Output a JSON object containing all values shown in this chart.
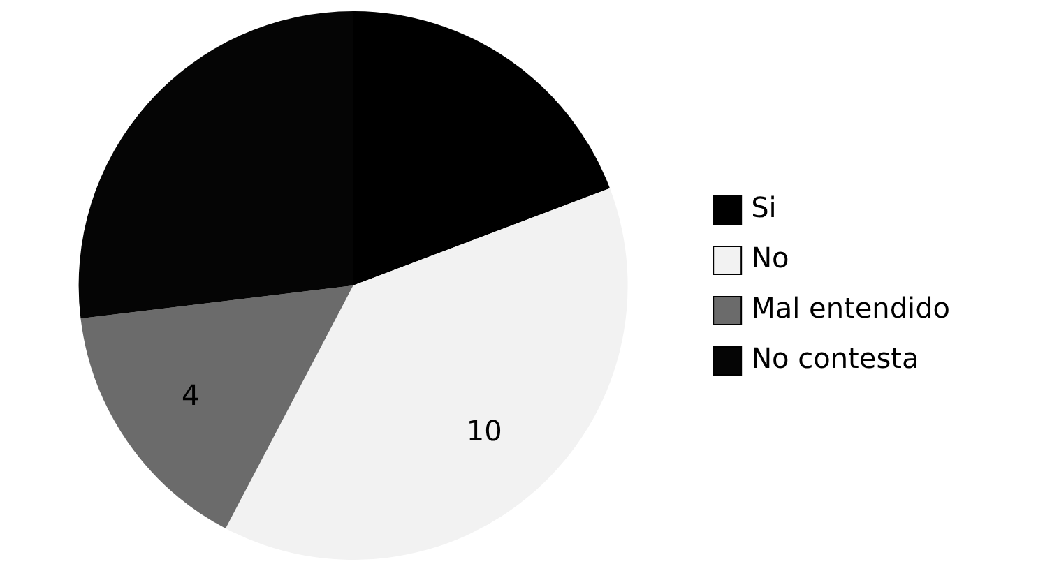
{
  "chart_data": {
    "type": "pie",
    "categories": [
      "Si",
      "No",
      "Mal entendido",
      "No contesta"
    ],
    "values": [
      5,
      10,
      4,
      7
    ],
    "colors": [
      "#000000",
      "#f2f2f2",
      "#6b6b6b",
      "#050505"
    ],
    "value_labels": [
      null,
      "10",
      "4",
      null
    ],
    "legend": "right"
  }
}
